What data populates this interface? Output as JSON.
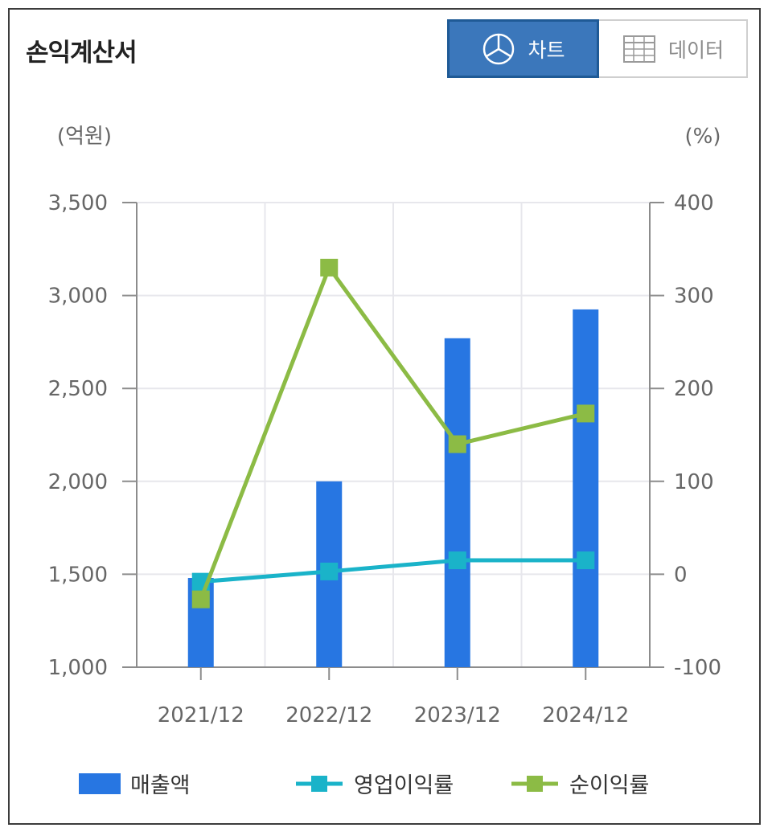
{
  "header": {
    "title": "손익계산서",
    "toggle": {
      "chart_label": "차트",
      "data_label": "데이터",
      "chart_icon": "pie-chart-icon",
      "data_icon": "table-grid-icon",
      "active": "chart"
    }
  },
  "colors": {
    "bar": "#2776e2",
    "operating": "#1ab3c9",
    "net": "#8cbb45",
    "active_button": "#3b77bb",
    "axis": "#8c8c8c",
    "grid": "#e7e7ec"
  },
  "chart_data": {
    "type": "bar",
    "categories": [
      "2021/12",
      "2022/12",
      "2023/12",
      "2024/12"
    ],
    "left_axis": {
      "unit": "(억원)",
      "ylim": [
        1000,
        3500
      ],
      "ticks": [
        1000,
        1500,
        2000,
        2500,
        3000,
        3500
      ],
      "tick_labels": [
        "1,000",
        "1,500",
        "2,000",
        "2,500",
        "3,000",
        "3,500"
      ]
    },
    "right_axis": {
      "unit": "(%)",
      "ylim": [
        -100,
        400
      ],
      "ticks": [
        -100,
        0,
        100,
        200,
        300,
        400
      ],
      "tick_labels": [
        "-100",
        "0",
        "100",
        "200",
        "300",
        "400"
      ]
    },
    "series": [
      {
        "name": "매출액",
        "type": "bar",
        "axis": "left",
        "values": [
          1480,
          2000,
          2770,
          2925
        ]
      },
      {
        "name": "영업이익률",
        "type": "line",
        "axis": "right",
        "values": [
          -8,
          3,
          15,
          15
        ]
      },
      {
        "name": "순이익률",
        "type": "line",
        "axis": "right",
        "values": [
          -27,
          330,
          140,
          173
        ]
      }
    ],
    "grid": true,
    "legend_position": "bottom"
  }
}
